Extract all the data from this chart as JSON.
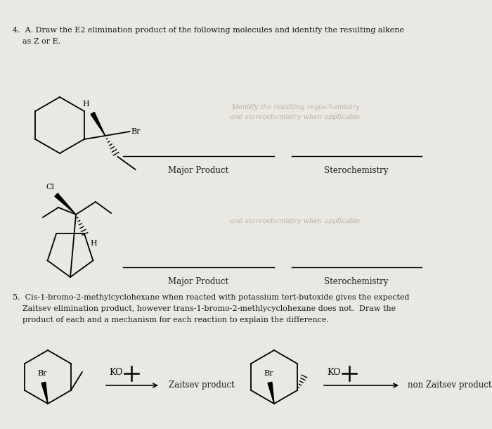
{
  "bg_color": "#eae8e2",
  "text_color": "#1a1a1a",
  "faded_color": "#b8b0a0",
  "q4_line1": "4.  A. Draw the E2 elimination product of the following molecules and identify the resulting alkene",
  "q4_line2": "    as Z or E.",
  "q5_line1": "5.  Cis-1-bromo-2-methylcyclohexane when reacted with potassium tert-butoxide gives the expected",
  "q5_line2": "    Zaitsev elimination product, however trans-1-bromo-2-methlycyclohexane does not.  Draw the",
  "q5_line3": "    product of each and a mechanism for each reaction to explain the difference.",
  "major_product": "Major Product",
  "stereo": "Sterochemistry",
  "zaitsev": "Zaitsev product",
  "non_zaitsev": "non Zaitsev product",
  "faded_lines": [
    "Identify the resulting regiochemistry",
    "and stereochemistry when applicable",
    "and stereochemistry when applicable"
  ]
}
